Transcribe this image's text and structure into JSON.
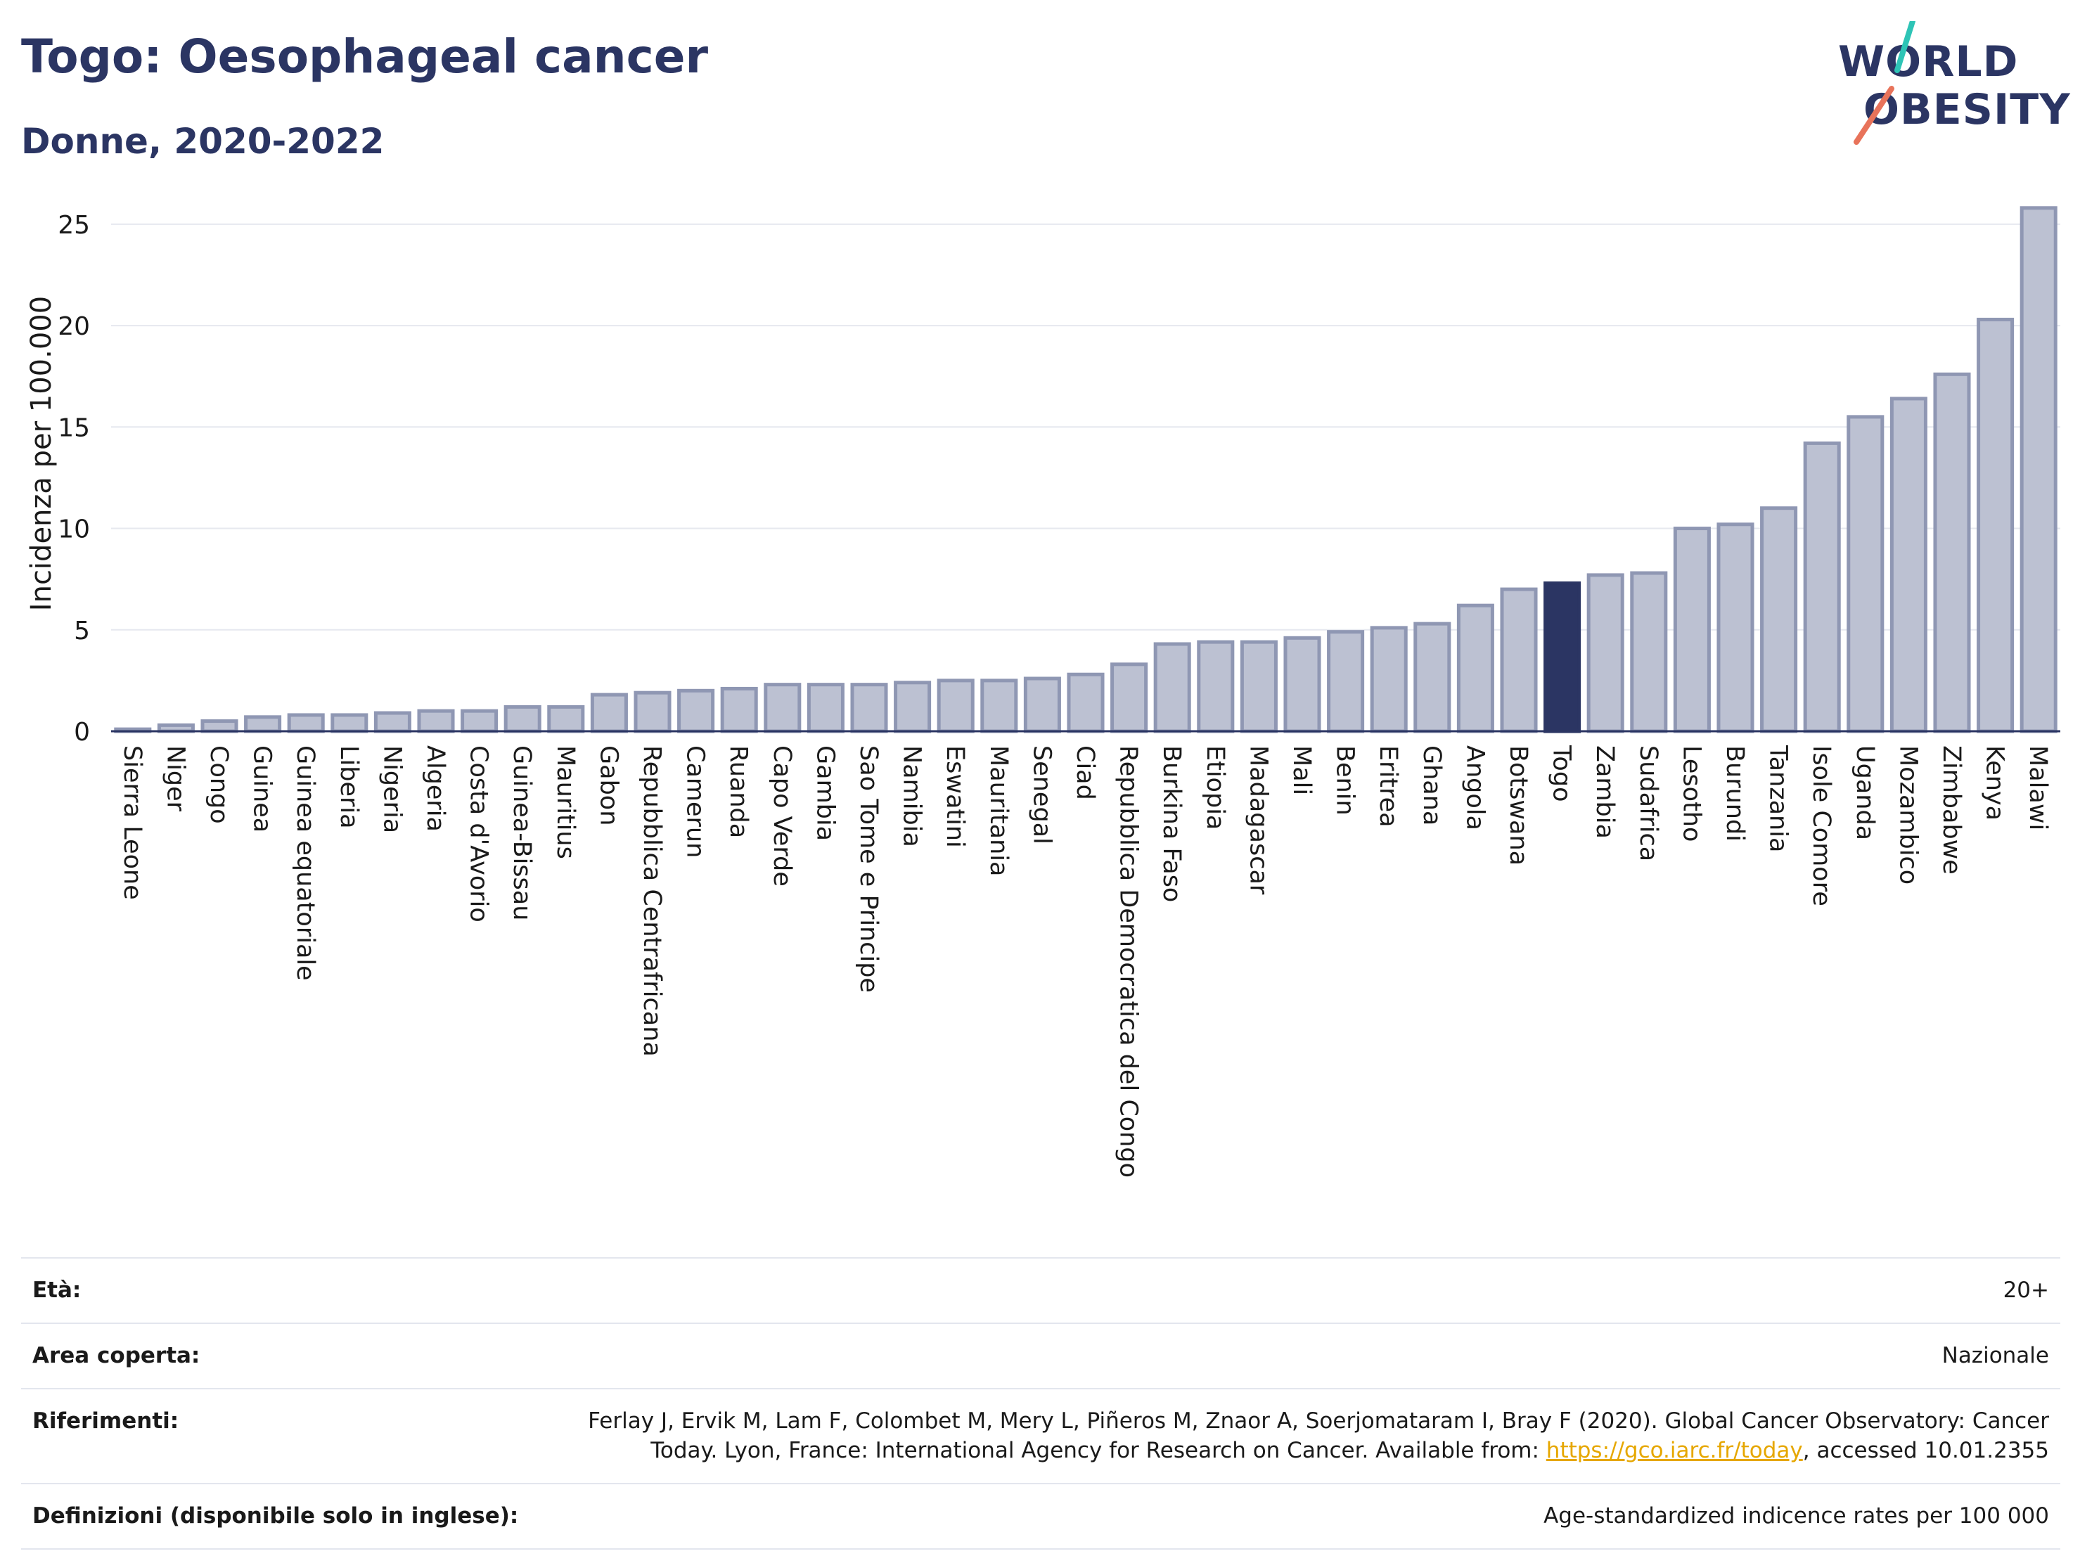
{
  "header": {
    "title": "Togo: Oesophageal cancer",
    "subtitle": "Donne, 2020-2022"
  },
  "logo": {
    "line1": "WORLD",
    "line2": "OBESITY",
    "slash_colors": [
      "#2ec4b6",
      "#e8735a"
    ]
  },
  "colors": {
    "bar": "#bcc1d2",
    "bar_stroke": "#8f97b3",
    "highlight": "#2b3563",
    "grid": "#e6e8ef",
    "axis": "#2b3563"
  },
  "chart_data": {
    "type": "bar",
    "title": "Togo: Oesophageal cancer",
    "subtitle": "Donne, 2020-2022",
    "ylabel": "Incidenza per 100.000",
    "xlabel": "",
    "ylim": [
      0,
      26
    ],
    "yticks": [
      0,
      5,
      10,
      15,
      20,
      25
    ],
    "grid": true,
    "highlight": "Togo",
    "categories": [
      "Sierra Leone",
      "Niger",
      "Congo",
      "Guinea",
      "Guinea equatoriale",
      "Liberia",
      "Nigeria",
      "Algeria",
      "Costa d'Avorio",
      "Guinea-Bissau",
      "Mauritius",
      "Gabon",
      "Repubblica Centrafricana",
      "Camerun",
      "Ruanda",
      "Capo Verde",
      "Gambia",
      "Sao Tome e Principe",
      "Namibia",
      "Eswatini",
      "Mauritania",
      "Senegal",
      "Ciad",
      "Repubblica Democratica del Congo",
      "Burkina Faso",
      "Etiopia",
      "Madagascar",
      "Mali",
      "Benin",
      "Eritrea",
      "Ghana",
      "Angola",
      "Botswana",
      "Togo",
      "Zambia",
      "Sudafrica",
      "Lesotho",
      "Burundi",
      "Tanzania",
      "Isole Comore",
      "Uganda",
      "Mozambico",
      "Zimbabwe",
      "Kenya",
      "Malawi"
    ],
    "values": [
      0.1,
      0.3,
      0.5,
      0.7,
      0.8,
      0.8,
      0.9,
      1.0,
      1.0,
      1.2,
      1.2,
      1.8,
      1.9,
      2.0,
      2.1,
      2.3,
      2.3,
      2.3,
      2.4,
      2.5,
      2.5,
      2.6,
      2.8,
      3.3,
      4.3,
      4.4,
      4.4,
      4.6,
      4.9,
      5.1,
      5.3,
      6.2,
      7.0,
      7.3,
      7.7,
      7.8,
      10.0,
      10.2,
      11.0,
      14.2,
      15.5,
      16.4,
      17.6,
      20.3,
      25.8
    ]
  },
  "meta": [
    {
      "key": "Età:",
      "value": "20+"
    },
    {
      "key": "Area coperta:",
      "value": "Nazionale"
    },
    {
      "key": "Riferimenti:",
      "value_pre": "Ferlay J, Ervik M, Lam F, Colombet M, Mery L, Piñeros M, Znaor A, Soerjomataram I, Bray F (2020). Global Cancer Observatory: Cancer Today. Lyon, France: International Agency for Research on Cancer. Available from: ",
      "link": "https://gco.iarc.fr/today",
      "value_post": ", accessed 10.01.2355"
    },
    {
      "key": "Definizioni (disponibile solo in inglese):",
      "value": "Age-standardized indicence rates per 100 000"
    }
  ]
}
